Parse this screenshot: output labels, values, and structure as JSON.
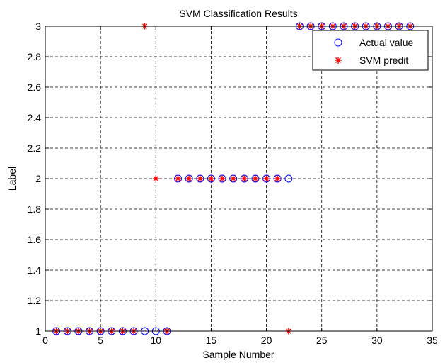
{
  "chart_data": {
    "type": "scatter",
    "title": "SVM Classification Results",
    "xlabel": "Sample Number",
    "ylabel": "Label",
    "xlim": [
      0,
      35
    ],
    "ylim": [
      1,
      3
    ],
    "xticks": [
      0,
      5,
      10,
      15,
      20,
      25,
      30,
      35
    ],
    "yticks": [
      1,
      1.2,
      1.4,
      1.6,
      1.8,
      2,
      2.2,
      2.4,
      2.6,
      2.8,
      3
    ],
    "xtick_labels": [
      "0",
      "5",
      "10",
      "15",
      "20",
      "25",
      "30",
      "35"
    ],
    "ytick_labels": [
      "1",
      "1.2",
      "1.4",
      "1.6",
      "1.8",
      "2",
      "2.2",
      "2.4",
      "2.6",
      "2.8",
      "3"
    ],
    "grid": true,
    "legend_position": "top-right",
    "series": [
      {
        "name": "Actual value",
        "marker": "circle",
        "color": "#0000ff",
        "x": [
          1,
          2,
          3,
          4,
          5,
          6,
          7,
          8,
          9,
          10,
          11,
          12,
          13,
          14,
          15,
          16,
          17,
          18,
          19,
          20,
          21,
          22,
          23,
          24,
          25,
          26,
          27,
          28,
          29,
          30,
          31,
          32,
          33
        ],
        "y": [
          1,
          1,
          1,
          1,
          1,
          1,
          1,
          1,
          1,
          1,
          1,
          2,
          2,
          2,
          2,
          2,
          2,
          2,
          2,
          2,
          2,
          2,
          3,
          3,
          3,
          3,
          3,
          3,
          3,
          3,
          3,
          3,
          3
        ]
      },
      {
        "name": "SVM predit",
        "marker": "asterisk",
        "color": "#ff0000",
        "x": [
          1,
          2,
          3,
          4,
          5,
          6,
          7,
          8,
          9,
          10,
          11,
          12,
          13,
          14,
          15,
          16,
          17,
          18,
          19,
          20,
          21,
          22,
          23,
          24,
          25,
          26,
          27,
          28,
          29,
          30,
          31,
          32,
          33
        ],
        "y": [
          1,
          1,
          1,
          1,
          1,
          1,
          1,
          1,
          3,
          2,
          1,
          2,
          2,
          2,
          2,
          2,
          2,
          2,
          2,
          2,
          2,
          1,
          3,
          3,
          3,
          3,
          3,
          3,
          3,
          3,
          3,
          3,
          3
        ]
      }
    ]
  }
}
